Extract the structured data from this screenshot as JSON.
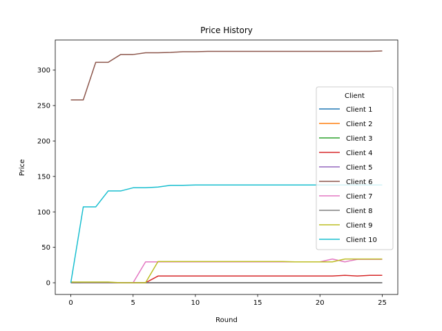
{
  "chart_data": {
    "type": "line",
    "title": "Price History",
    "xlabel": "Round",
    "ylabel": "Price",
    "xlim": [
      -1.25,
      26.25
    ],
    "ylim": [
      -16.5,
      342.5
    ],
    "xticks": [
      0,
      5,
      10,
      15,
      20,
      25
    ],
    "yticks": [
      0,
      50,
      100,
      150,
      200,
      250,
      300
    ],
    "grid": false,
    "legend": {
      "title": "Client",
      "placement": "center-right"
    },
    "x": [
      0,
      1,
      2,
      3,
      4,
      5,
      6,
      7,
      8,
      9,
      10,
      11,
      12,
      13,
      14,
      15,
      16,
      17,
      18,
      19,
      20,
      21,
      22,
      23,
      24,
      25
    ],
    "series": [
      {
        "name": "Client 1",
        "color": "#1f77b4",
        "values": [
          0,
          0,
          0,
          0,
          0,
          0,
          0,
          0,
          0,
          0,
          0,
          0,
          0,
          0,
          0,
          0,
          0,
          0,
          0,
          0,
          0,
          0,
          0,
          0,
          0,
          0
        ]
      },
      {
        "name": "Client 2",
        "color": "#ff7f0e",
        "values": [
          0,
          0,
          0,
          0,
          0,
          0,
          0,
          0,
          0,
          0,
          0,
          0,
          0,
          0,
          0,
          0,
          0,
          0,
          0,
          0,
          0,
          0,
          0,
          0,
          0,
          0
        ]
      },
      {
        "name": "Client 3",
        "color": "#2ca02c",
        "values": [
          0,
          0,
          0,
          0,
          0,
          0,
          0,
          0,
          0,
          0,
          0,
          0,
          0,
          0,
          0,
          0,
          0,
          0,
          0,
          0,
          0,
          0,
          0,
          0,
          0,
          0
        ]
      },
      {
        "name": "Client 4",
        "color": "#d62728",
        "values": [
          0,
          0,
          0,
          0,
          0,
          0,
          0,
          9.5,
          9.5,
          9.5,
          9.5,
          9.5,
          9.5,
          9.5,
          9.5,
          9.5,
          9.5,
          9.5,
          9.5,
          9.5,
          9.5,
          9.5,
          10.5,
          9.5,
          10.5,
          10.5
        ]
      },
      {
        "name": "Client 5",
        "color": "#9467bd",
        "values": [
          0,
          0,
          0,
          0,
          0,
          0,
          0,
          0,
          0,
          0,
          0,
          0,
          0,
          0,
          0,
          0,
          0,
          0,
          0,
          0,
          0,
          0,
          0,
          0,
          0,
          0
        ]
      },
      {
        "name": "Client 6",
        "color": "#8c564b",
        "values": [
          258,
          258,
          311,
          311,
          322,
          322,
          324.5,
          324.5,
          325,
          326,
          326,
          326.5,
          326.5,
          326.5,
          326.5,
          326.5,
          326.5,
          326.5,
          326.5,
          326.5,
          326.5,
          326.5,
          326.5,
          326.5,
          326.5,
          327
        ]
      },
      {
        "name": "Client 7",
        "color": "#e377c2",
        "values": [
          1,
          0,
          0,
          0,
          0,
          0,
          29.5,
          29.5,
          29.5,
          29.5,
          29.5,
          29.5,
          29.5,
          29.5,
          29.5,
          29.5,
          29.5,
          29.5,
          29.5,
          29.5,
          29.5,
          33.5,
          29.5,
          33,
          33,
          33
        ]
      },
      {
        "name": "Client 8",
        "color": "#7f7f7f",
        "values": [
          0,
          0,
          0,
          0,
          0,
          0,
          0,
          0,
          0,
          0,
          0,
          0,
          0,
          0,
          0,
          0,
          0,
          0,
          0,
          0,
          0,
          0,
          0,
          0,
          0,
          0
        ]
      },
      {
        "name": "Client 9",
        "color": "#bcbd22",
        "values": [
          1,
          1,
          1,
          1,
          0,
          0,
          0,
          30,
          30,
          30,
          30,
          30,
          30,
          30,
          30,
          30,
          30,
          30,
          29.5,
          29.5,
          29.5,
          29.5,
          33.5,
          33.5,
          33.5,
          33.5
        ]
      },
      {
        "name": "Client 10",
        "color": "#17becf",
        "values": [
          0,
          107,
          107,
          129.5,
          129.5,
          134,
          134,
          135,
          137.5,
          137.5,
          138,
          138,
          138,
          138,
          138,
          138,
          138,
          138,
          138,
          138,
          138,
          138,
          138,
          138,
          138,
          138
        ]
      }
    ]
  }
}
